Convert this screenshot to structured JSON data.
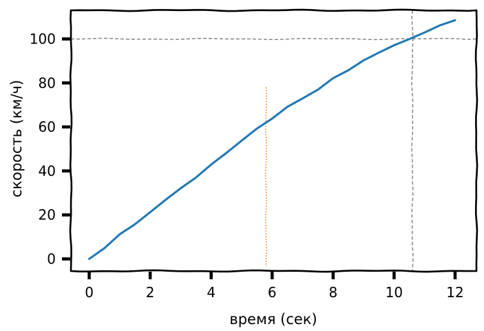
{
  "chart_data": {
    "type": "line",
    "xlabel": "время (сек)",
    "ylabel": "скорость (км/ч)",
    "xlim": [
      -0.6,
      12.7
    ],
    "ylim": [
      -5.5,
      113
    ],
    "xticks": [
      0,
      2,
      4,
      6,
      8,
      10,
      12
    ],
    "yticks": [
      0,
      20,
      40,
      60,
      80,
      100
    ],
    "grid": false,
    "style": "xkcd",
    "series": [
      {
        "color": "#1f77b4",
        "x": [
          0,
          0.5,
          1,
          1.5,
          2,
          2.5,
          3,
          3.5,
          4,
          4.5,
          5,
          5.5,
          6,
          6.5,
          7,
          7.5,
          8,
          8.5,
          9,
          9.5,
          10,
          10.5,
          11,
          11.5,
          12
        ],
        "y": [
          0,
          5,
          11,
          16,
          21,
          27,
          32,
          37,
          43,
          48,
          54,
          59,
          64,
          69,
          73,
          77,
          82,
          86,
          90,
          94,
          97,
          100,
          103,
          106,
          108.5
        ]
      }
    ],
    "reference_lines": [
      {
        "orientation": "horizontal",
        "value": 100,
        "color": "#808080",
        "style": "dashed"
      },
      {
        "orientation": "vertical",
        "value": 10.6,
        "color": "#808080",
        "style": "dashed"
      },
      {
        "orientation": "vertical",
        "value": 5.8,
        "y_range": [
          -3.5,
          78
        ],
        "color": "#ff7f0e",
        "style": "dotted"
      }
    ]
  }
}
